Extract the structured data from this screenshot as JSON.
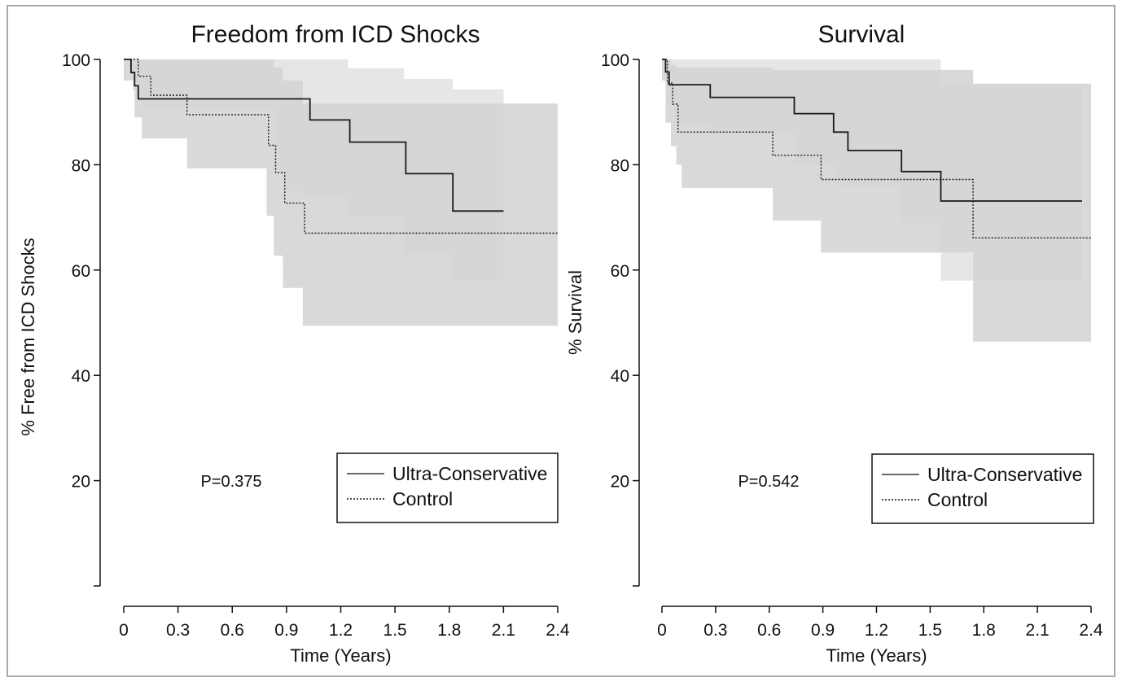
{
  "chart_data": [
    {
      "type": "line",
      "step": true,
      "title": "Freedom from ICD Shocks",
      "xlabel": "Time (Years)",
      "ylabel": "% Free from ICD Shocks",
      "xlim": [
        0,
        2.4
      ],
      "ylim": [
        0,
        100
      ],
      "xticks": [
        "0",
        "0.3",
        "0.6",
        "0.9",
        "1.2",
        "1.5",
        "1.8",
        "2.1",
        "2.4"
      ],
      "yticks": [
        "20",
        "40",
        "60",
        "80",
        "100"
      ],
      "annotation": "P=0.375",
      "legend_position": "lower-right",
      "grid": false,
      "series": [
        {
          "name": "Ultra-Conservative",
          "line": "solid",
          "color": "#1a1a1a",
          "x": [
            0,
            0.04,
            0.06,
            0.08,
            0.1,
            1.03,
            1.25,
            1.56,
            1.82,
            2.1
          ],
          "y": [
            100,
            97.5,
            95,
            92.5,
            92.5,
            88.5,
            84.3,
            78.3,
            71.2,
            71.2
          ],
          "ci_band": {
            "x": [
              0,
              0.05,
              0.08,
              0.1,
              0.2,
              0.83,
              0.88,
              0.99,
              1.24,
              1.55,
              1.82,
              2.1
            ],
            "upper": [
              100,
              100,
              100,
              100,
              100,
              100,
              100,
              100,
              98.3,
              96.3,
              94.3,
              94.3
            ],
            "lower": [
              100,
              94,
              92,
              91,
              91,
              78,
              75,
              74,
              70,
              63,
              58,
              58
            ]
          }
        },
        {
          "name": "Control",
          "line": "dotted",
          "color": "#1a1a1a",
          "x": [
            0,
            0.08,
            0.15,
            0.35,
            0.8,
            0.84,
            0.89,
            1.0,
            2.4
          ],
          "y": [
            100,
            96.8,
            93.2,
            89.5,
            83.7,
            78.5,
            72.7,
            67,
            67
          ],
          "ci_band": {
            "x": [
              0,
              0.06,
              0.1,
              0.16,
              0.35,
              0.79,
              0.83,
              0.88,
              0.99,
              2.4
            ],
            "upper": [
              100,
              100,
              100,
              100,
              100,
              100,
              98.5,
              96,
              91.6,
              91.6
            ],
            "lower": [
              96,
              89,
              85,
              85,
              79.3,
              70.3,
              62.7,
              56.6,
              49.4,
              49.4
            ]
          }
        }
      ]
    },
    {
      "type": "line",
      "step": true,
      "title": "Survival",
      "xlabel": "Time (Years)",
      "ylabel": "% Survival",
      "xlim": [
        0,
        2.4
      ],
      "ylim": [
        0,
        100
      ],
      "xticks": [
        "0",
        "0.3",
        "0.6",
        "0.9",
        "1.2",
        "1.5",
        "1.8",
        "2.1",
        "2.4"
      ],
      "yticks": [
        "20",
        "40",
        "60",
        "80",
        "100"
      ],
      "annotation": "P=0.542",
      "legend_position": "lower-right",
      "grid": false,
      "series": [
        {
          "name": "Ultra-Conservative",
          "line": "solid",
          "color": "#1a1a1a",
          "x": [
            0,
            0.02,
            0.04,
            0.27,
            0.74,
            0.96,
            1.04,
            1.34,
            1.56,
            2.35
          ],
          "y": [
            100,
            97.6,
            95.2,
            92.8,
            89.7,
            86.2,
            82.7,
            78.7,
            73.1,
            73.1
          ],
          "ci_band": {
            "x": [
              0,
              0.03,
              0.07,
              0.1,
              0.27,
              0.74,
              0.96,
              1.34,
              1.56,
              1.75,
              2.35
            ],
            "upper": [
              100,
              100,
              100,
              100,
              100,
              100,
              100,
              100,
              95,
              95,
              95
            ],
            "lower": [
              100,
              92,
              89,
              88,
              86,
              80,
              76,
              69,
              58,
              58,
              58
            ]
          }
        },
        {
          "name": "Control",
          "line": "dotted",
          "color": "#1a1a1a",
          "x": [
            0,
            0.03,
            0.06,
            0.09,
            0.62,
            0.89,
            1.74,
            2.4
          ],
          "y": [
            100,
            95.5,
            91.5,
            86.2,
            81.8,
            77.2,
            66.1,
            66.1
          ],
          "ci_band": {
            "x": [
              0,
              0.02,
              0.05,
              0.08,
              0.11,
              0.62,
              0.89,
              1.74,
              2.4
            ],
            "upper": [
              100,
              100,
              99,
              98.5,
              98.5,
              98,
              98,
              95.4,
              95.4
            ],
            "lower": [
              96,
              88,
              83.5,
              80,
              75.6,
              69.4,
              63.3,
              46.4,
              46.4
            ]
          }
        }
      ]
    }
  ]
}
